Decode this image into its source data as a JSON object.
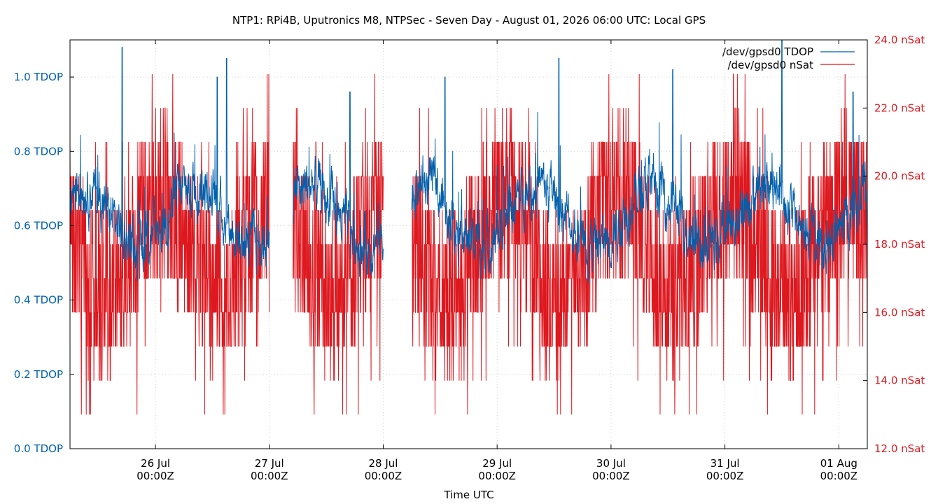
{
  "chart_data": {
    "type": "line",
    "title": "NTP1: RPi4B, Uputronics M8, NTPSec - Seven Day - August 01, 2026 06:00 UTC: Local GPS",
    "xlabel": "Time UTC",
    "x_range": [
      "2026-07-25T06:00Z",
      "2026-08-01T06:00Z"
    ],
    "x_ticks": [
      {
        "date": "2026-07-26T00:00Z",
        "line1": "26 Jul",
        "line2": "00:00Z"
      },
      {
        "date": "2026-07-27T00:00Z",
        "line1": "27 Jul",
        "line2": "00:00Z"
      },
      {
        "date": "2026-07-28T00:00Z",
        "line1": "28 Jul",
        "line2": "00:00Z"
      },
      {
        "date": "2026-07-29T00:00Z",
        "line1": "29 Jul",
        "line2": "00:00Z"
      },
      {
        "date": "2026-07-30T00:00Z",
        "line1": "30 Jul",
        "line2": "00:00Z"
      },
      {
        "date": "2026-07-31T00:00Z",
        "line1": "31 Jul",
        "line2": "00:00Z"
      },
      {
        "date": "2026-08-01T00:00Z",
        "line1": "01 Aug",
        "line2": "00:00Z"
      }
    ],
    "y_left": {
      "range": [
        0.0,
        1.1
      ],
      "ticks": [
        {
          "v": 0.0,
          "label": "0.0 TDOP"
        },
        {
          "v": 0.2,
          "label": "0.2 TDOP"
        },
        {
          "v": 0.4,
          "label": "0.4 TDOP"
        },
        {
          "v": 0.6,
          "label": "0.6 TDOP"
        },
        {
          "v": 0.8,
          "label": "0.8 TDOP"
        },
        {
          "v": 1.0,
          "label": "1.0 TDOP"
        }
      ],
      "color": "#0060ad"
    },
    "y_right": {
      "range": [
        12.0,
        24.0
      ],
      "ticks": [
        {
          "v": 12.0,
          "label": "12.0 nSat"
        },
        {
          "v": 14.0,
          "label": "14.0 nSat"
        },
        {
          "v": 16.0,
          "label": "16.0 nSat"
        },
        {
          "v": 18.0,
          "label": "18.0 nSat"
        },
        {
          "v": 20.0,
          "label": "20.0 nSat"
        },
        {
          "v": 22.0,
          "label": "22.0 nSat"
        },
        {
          "v": 24.0,
          "label": "24.0 nSat"
        }
      ],
      "color": "#dd181f"
    },
    "grid": true,
    "legend_position": "top-right",
    "series": [
      {
        "name": "/dev/gpsd0 TDOP",
        "axis": "left",
        "color": "#0060ad",
        "segments": [
          {
            "start": "2026-07-25T06:00Z",
            "end": "2026-07-27T00:00Z"
          },
          {
            "start": "2026-07-27T05:00Z",
            "end": "2026-07-28T00:00Z"
          },
          {
            "start": "2026-07-28T06:00Z",
            "end": "2026-08-01T06:00Z"
          }
        ],
        "typical_range": [
          0.45,
          0.85
        ],
        "peaks": [
          {
            "date": "2026-07-25T17:00Z",
            "v": 1.08
          },
          {
            "date": "2026-07-26T13:00Z",
            "v": 1.0
          },
          {
            "date": "2026-07-26T15:00Z",
            "v": 1.05
          },
          {
            "date": "2026-07-27T17:00Z",
            "v": 0.96
          },
          {
            "date": "2026-07-28T13:00Z",
            "v": 1.0
          },
          {
            "date": "2026-07-29T13:00Z",
            "v": 1.05
          },
          {
            "date": "2026-07-30T13:00Z",
            "v": 1.02
          },
          {
            "date": "2026-07-31T12:00Z",
            "v": 1.1
          },
          {
            "date": "2026-08-01T03:00Z",
            "v": 0.96
          }
        ]
      },
      {
        "name": "/dev/gpsd0 nSat",
        "axis": "right",
        "color": "#dd181f",
        "segments": [
          {
            "start": "2026-07-25T06:00Z",
            "end": "2026-07-27T00:00Z"
          },
          {
            "start": "2026-07-27T05:00Z",
            "end": "2026-07-28T00:00Z"
          },
          {
            "start": "2026-07-28T06:00Z",
            "end": "2026-08-01T06:00Z"
          }
        ],
        "levels": [
          13,
          14,
          15,
          16,
          17,
          18,
          19,
          20,
          21,
          22,
          23
        ],
        "typical_range": [
          16,
          20
        ]
      }
    ]
  }
}
